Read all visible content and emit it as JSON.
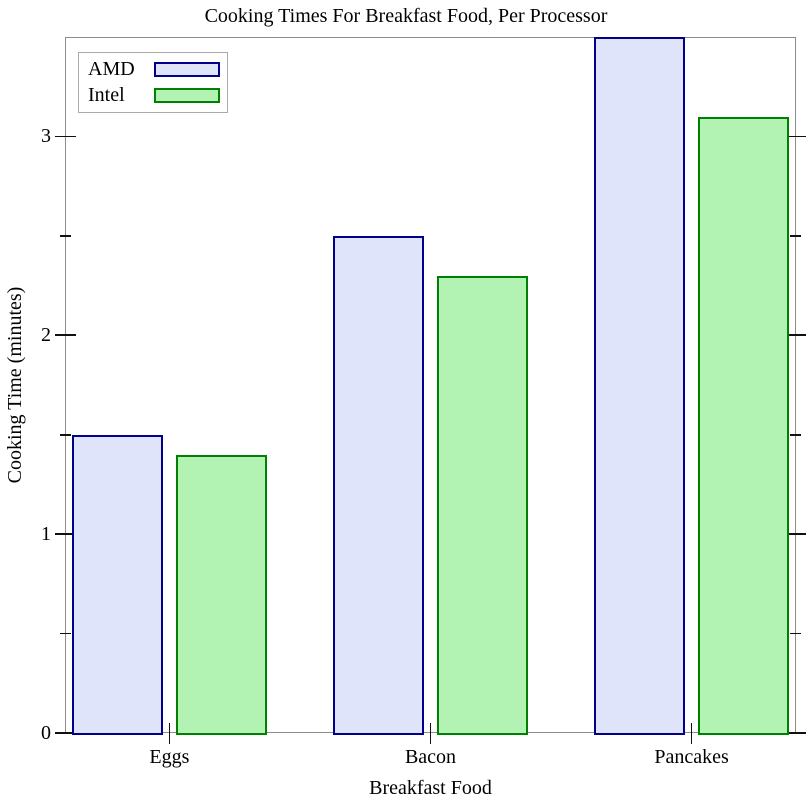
{
  "chart_data": {
    "type": "bar",
    "title": "Cooking Times For Breakfast Food, Per Processor",
    "xlabel": "Breakfast Food",
    "ylabel": "Cooking Time (minutes)",
    "categories": [
      "Eggs",
      "Bacon",
      "Pancakes"
    ],
    "series": [
      {
        "name": "AMD",
        "values": [
          1.5,
          2.5,
          3.5
        ],
        "fill_color": "#e0e4fa",
        "border_color": "#00008a"
      },
      {
        "name": "Intel",
        "values": [
          1.4,
          2.3,
          3.1
        ],
        "fill_color": "#b2f2b2",
        "border_color": "#008000"
      }
    ],
    "ylim": [
      0,
      3.5
    ],
    "y_major_ticks": [
      0,
      1,
      2,
      3
    ],
    "y_minor_ticks": [
      0.5,
      1.5,
      2.5
    ],
    "grid": false,
    "legend_position": "top-left"
  },
  "colors": {
    "frame": "#8c8c8c",
    "tick": "#111111",
    "text": "#000000",
    "legend_border": "#aaaaaa",
    "background": "#ffffff"
  }
}
